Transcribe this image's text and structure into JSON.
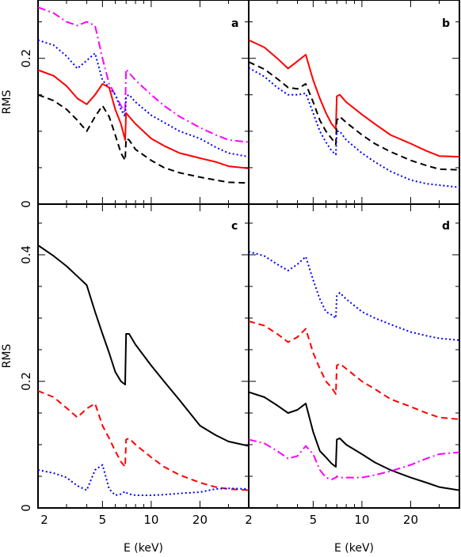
{
  "chart_data": [
    {
      "panel": "a",
      "type": "line",
      "xscale": "log",
      "xlim": [
        2,
        40
      ],
      "ylim": [
        0,
        0.28
      ],
      "xlabel": "",
      "ylabel": "RMS",
      "yticks": [
        "0",
        "0.2"
      ],
      "series": [
        {
          "color": "#ff00ff",
          "style": "dashdot",
          "x": [
            2,
            2.5,
            3,
            3.5,
            4,
            4.5,
            5,
            5.5,
            6,
            6.5,
            6.9,
            7,
            7.3,
            8,
            10,
            12,
            15,
            20,
            25,
            30,
            40
          ],
          "y": [
            0.27,
            0.262,
            0.25,
            0.245,
            0.25,
            0.245,
            0.2,
            0.165,
            0.15,
            0.135,
            0.125,
            0.185,
            0.18,
            0.17,
            0.15,
            0.135,
            0.12,
            0.105,
            0.095,
            0.088,
            0.085
          ]
        },
        {
          "color": "#0000ff",
          "style": "dotted",
          "x": [
            2,
            2.5,
            3,
            3.5,
            4,
            4.5,
            5,
            5.5,
            6,
            6.5,
            6.9,
            7,
            7.3,
            8,
            10,
            12,
            15,
            20,
            25,
            30,
            40
          ],
          "y": [
            0.225,
            0.218,
            0.203,
            0.186,
            0.197,
            0.207,
            0.17,
            0.16,
            0.15,
            0.13,
            0.12,
            0.148,
            0.15,
            0.14,
            0.122,
            0.112,
            0.1,
            0.09,
            0.078,
            0.07,
            0.065
          ]
        },
        {
          "color": "#ff0000",
          "style": "solid",
          "x": [
            2,
            2.5,
            3,
            3.5,
            4,
            4.5,
            5,
            5.5,
            6,
            6.5,
            6.9,
            7,
            7.3,
            8,
            10,
            12,
            15,
            20,
            25,
            30,
            40
          ],
          "y": [
            0.184,
            0.176,
            0.162,
            0.145,
            0.137,
            0.15,
            0.165,
            0.16,
            0.13,
            0.11,
            0.088,
            0.125,
            0.12,
            0.11,
            0.09,
            0.08,
            0.07,
            0.063,
            0.058,
            0.052,
            0.049
          ]
        },
        {
          "color": "#000000",
          "style": "dashed",
          "x": [
            2,
            2.5,
            3,
            3.5,
            4,
            4.5,
            5,
            5.5,
            6,
            6.5,
            6.9,
            7,
            7.3,
            8,
            10,
            12,
            15,
            20,
            25,
            30,
            40
          ],
          "y": [
            0.15,
            0.142,
            0.13,
            0.115,
            0.1,
            0.12,
            0.135,
            0.12,
            0.095,
            0.07,
            0.06,
            0.09,
            0.088,
            0.075,
            0.06,
            0.05,
            0.043,
            0.037,
            0.033,
            0.03,
            0.029
          ]
        }
      ]
    },
    {
      "panel": "b",
      "type": "line",
      "xscale": "log",
      "xlim": [
        2,
        40
      ],
      "ylim": [
        0,
        0.28
      ],
      "xlabel": "",
      "ylabel": "",
      "yticks": [],
      "series": [
        {
          "color": "#ff0000",
          "style": "solid",
          "x": [
            2,
            2.5,
            3,
            3.5,
            4,
            4.5,
            5,
            5.5,
            6,
            6.5,
            6.9,
            7,
            7.3,
            8,
            10,
            12,
            15,
            20,
            25,
            30,
            40
          ],
          "y": [
            0.225,
            0.215,
            0.2,
            0.186,
            0.196,
            0.205,
            0.17,
            0.145,
            0.125,
            0.11,
            0.103,
            0.148,
            0.15,
            0.14,
            0.123,
            0.11,
            0.095,
            0.083,
            0.073,
            0.066,
            0.065
          ]
        },
        {
          "color": "#000000",
          "style": "dashed",
          "x": [
            2,
            2.5,
            3,
            3.5,
            4,
            4.5,
            5,
            5.5,
            6,
            6.5,
            6.9,
            7,
            7.3,
            8,
            10,
            12,
            15,
            20,
            25,
            30,
            40
          ],
          "y": [
            0.195,
            0.185,
            0.172,
            0.16,
            0.158,
            0.165,
            0.14,
            0.115,
            0.1,
            0.09,
            0.082,
            0.115,
            0.12,
            0.112,
            0.095,
            0.083,
            0.072,
            0.06,
            0.053,
            0.048,
            0.047
          ]
        },
        {
          "color": "#0000ff",
          "style": "dotted",
          "x": [
            2,
            2.5,
            3,
            3.5,
            4,
            4.5,
            5,
            5.5,
            6,
            6.5,
            6.9,
            7,
            7.3,
            8,
            10,
            12,
            15,
            20,
            25,
            30,
            40
          ],
          "y": [
            0.187,
            0.175,
            0.16,
            0.15,
            0.15,
            0.152,
            0.125,
            0.1,
            0.085,
            0.073,
            0.068,
            0.1,
            0.1,
            0.088,
            0.07,
            0.058,
            0.045,
            0.033,
            0.028,
            0.026,
            0.023
          ]
        }
      ]
    },
    {
      "panel": "c",
      "type": "line",
      "xscale": "log",
      "xlim": [
        2,
        40
      ],
      "ylim": [
        0,
        0.48
      ],
      "xlabel": "E (keV)",
      "ylabel": "RMS",
      "yticks": [
        "0",
        "0.2",
        "0.4"
      ],
      "xticks": [
        "2",
        "5",
        "10",
        "20"
      ],
      "series": [
        {
          "color": "#000000",
          "style": "solid",
          "x": [
            2,
            2.5,
            3,
            3.5,
            4,
            4.5,
            5,
            5.5,
            6,
            6.5,
            6.9,
            7,
            7.3,
            8,
            10,
            12,
            15,
            20,
            25,
            30,
            40
          ],
          "y": [
            0.415,
            0.398,
            0.382,
            0.366,
            0.352,
            0.31,
            0.275,
            0.245,
            0.215,
            0.2,
            0.195,
            0.275,
            0.275,
            0.258,
            0.225,
            0.2,
            0.17,
            0.13,
            0.115,
            0.105,
            0.098
          ]
        },
        {
          "color": "#ff0000",
          "style": "dashed",
          "x": [
            2,
            2.5,
            3,
            3.5,
            4,
            4.5,
            5,
            5.5,
            6,
            6.5,
            6.9,
            7,
            7.3,
            8,
            10,
            12,
            15,
            20,
            25,
            30,
            40
          ],
          "y": [
            0.185,
            0.175,
            0.158,
            0.143,
            0.157,
            0.165,
            0.13,
            0.11,
            0.09,
            0.073,
            0.065,
            0.108,
            0.11,
            0.1,
            0.08,
            0.065,
            0.052,
            0.04,
            0.033,
            0.03,
            0.028
          ]
        },
        {
          "color": "#0000ff",
          "style": "dotted",
          "x": [
            2,
            2.5,
            3,
            3.5,
            4,
            4.5,
            5,
            5.5,
            6,
            6.5,
            6.9,
            7,
            7.3,
            8,
            10,
            12,
            15,
            20,
            25,
            30,
            40
          ],
          "y": [
            0.06,
            0.055,
            0.048,
            0.035,
            0.028,
            0.06,
            0.068,
            0.03,
            0.02,
            0.022,
            0.026,
            0.024,
            0.022,
            0.02,
            0.02,
            0.021,
            0.023,
            0.025,
            0.03,
            0.031,
            0.03
          ]
        }
      ]
    },
    {
      "panel": "d",
      "type": "line",
      "xscale": "log",
      "xlim": [
        2,
        40
      ],
      "ylim": [
        0,
        0.48
      ],
      "xlabel": "E (keV)",
      "ylabel": "",
      "yticks": [],
      "xticks": [
        "5",
        "10",
        "20"
      ],
      "series": [
        {
          "color": "#0000ff",
          "style": "dotted",
          "x": [
            2,
            2.5,
            3,
            3.5,
            4,
            4.5,
            5,
            5.5,
            6,
            6.5,
            6.9,
            7,
            7.3,
            8,
            10,
            12,
            15,
            20,
            25,
            30,
            40
          ],
          "y": [
            0.405,
            0.398,
            0.385,
            0.375,
            0.385,
            0.397,
            0.36,
            0.33,
            0.31,
            0.305,
            0.3,
            0.335,
            0.34,
            0.33,
            0.31,
            0.3,
            0.29,
            0.278,
            0.272,
            0.268,
            0.265
          ]
        },
        {
          "color": "#ff0000",
          "style": "dashed",
          "x": [
            2,
            2.5,
            3,
            3.5,
            4,
            4.5,
            5,
            5.5,
            6,
            6.5,
            6.9,
            7,
            7.3,
            8,
            10,
            12,
            15,
            20,
            25,
            30,
            40
          ],
          "y": [
            0.295,
            0.288,
            0.275,
            0.262,
            0.27,
            0.283,
            0.245,
            0.22,
            0.2,
            0.19,
            0.18,
            0.225,
            0.228,
            0.22,
            0.2,
            0.188,
            0.172,
            0.16,
            0.15,
            0.143,
            0.14
          ]
        },
        {
          "color": "#000000",
          "style": "solid",
          "x": [
            2,
            2.5,
            3,
            3.5,
            4,
            4.5,
            5,
            5.5,
            6,
            6.5,
            6.9,
            7,
            7.3,
            8,
            10,
            12,
            15,
            20,
            25,
            30,
            40
          ],
          "y": [
            0.183,
            0.175,
            0.162,
            0.15,
            0.155,
            0.165,
            0.12,
            0.09,
            0.08,
            0.07,
            0.065,
            0.108,
            0.11,
            0.1,
            0.085,
            0.072,
            0.06,
            0.048,
            0.04,
            0.033,
            0.028
          ]
        },
        {
          "color": "#ff00ff",
          "style": "dashdot",
          "x": [
            2,
            2.5,
            3,
            3.5,
            4,
            4.5,
            5,
            5.5,
            6,
            6.5,
            6.9,
            7,
            7.3,
            8,
            10,
            12,
            15,
            20,
            25,
            30,
            40
          ],
          "y": [
            0.108,
            0.102,
            0.09,
            0.078,
            0.082,
            0.098,
            0.085,
            0.06,
            0.048,
            0.045,
            0.048,
            0.05,
            0.048,
            0.048,
            0.048,
            0.052,
            0.058,
            0.068,
            0.078,
            0.085,
            0.088
          ]
        }
      ]
    }
  ]
}
